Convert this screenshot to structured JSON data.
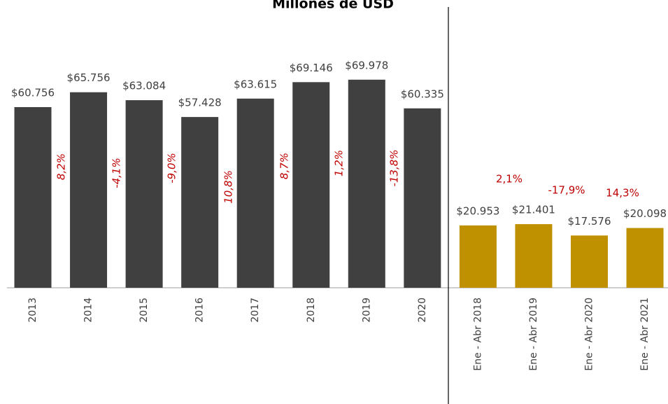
{
  "chart_data": {
    "type": "bar",
    "title": "Millones de USD",
    "categories": [
      "2013",
      "2014",
      "2015",
      "2016",
      "2017",
      "2018",
      "2019",
      "2020",
      "Ene - Abr 2018",
      "Ene - Abr 2019",
      "Ene - Abr 2020",
      "Ene - Abr 2021"
    ],
    "values": [
      60756,
      65756,
      63084,
      57428,
      63615,
      69146,
      69978,
      60335,
      20953,
      21401,
      17576,
      20098
    ],
    "value_labels": [
      "$60.756",
      "$65.756",
      "$63.084",
      "$57.428",
      "$63.615",
      "$69.146",
      "$69.978",
      "$60.335",
      "$20.953",
      "$21.401",
      "$17.576",
      "$20.098"
    ],
    "colors": [
      "#404040",
      "#404040",
      "#404040",
      "#404040",
      "#404040",
      "#404040",
      "#404040",
      "#404040",
      "#bf9000",
      "#bf9000",
      "#bf9000",
      "#bf9000"
    ],
    "annotations": [
      "8,2%",
      "-4,1%",
      "-9,0%",
      "10,8%",
      "8,7%",
      "1,2%",
      "-13,8%",
      "2,1%",
      "-17,9%",
      "14,3%"
    ]
  }
}
